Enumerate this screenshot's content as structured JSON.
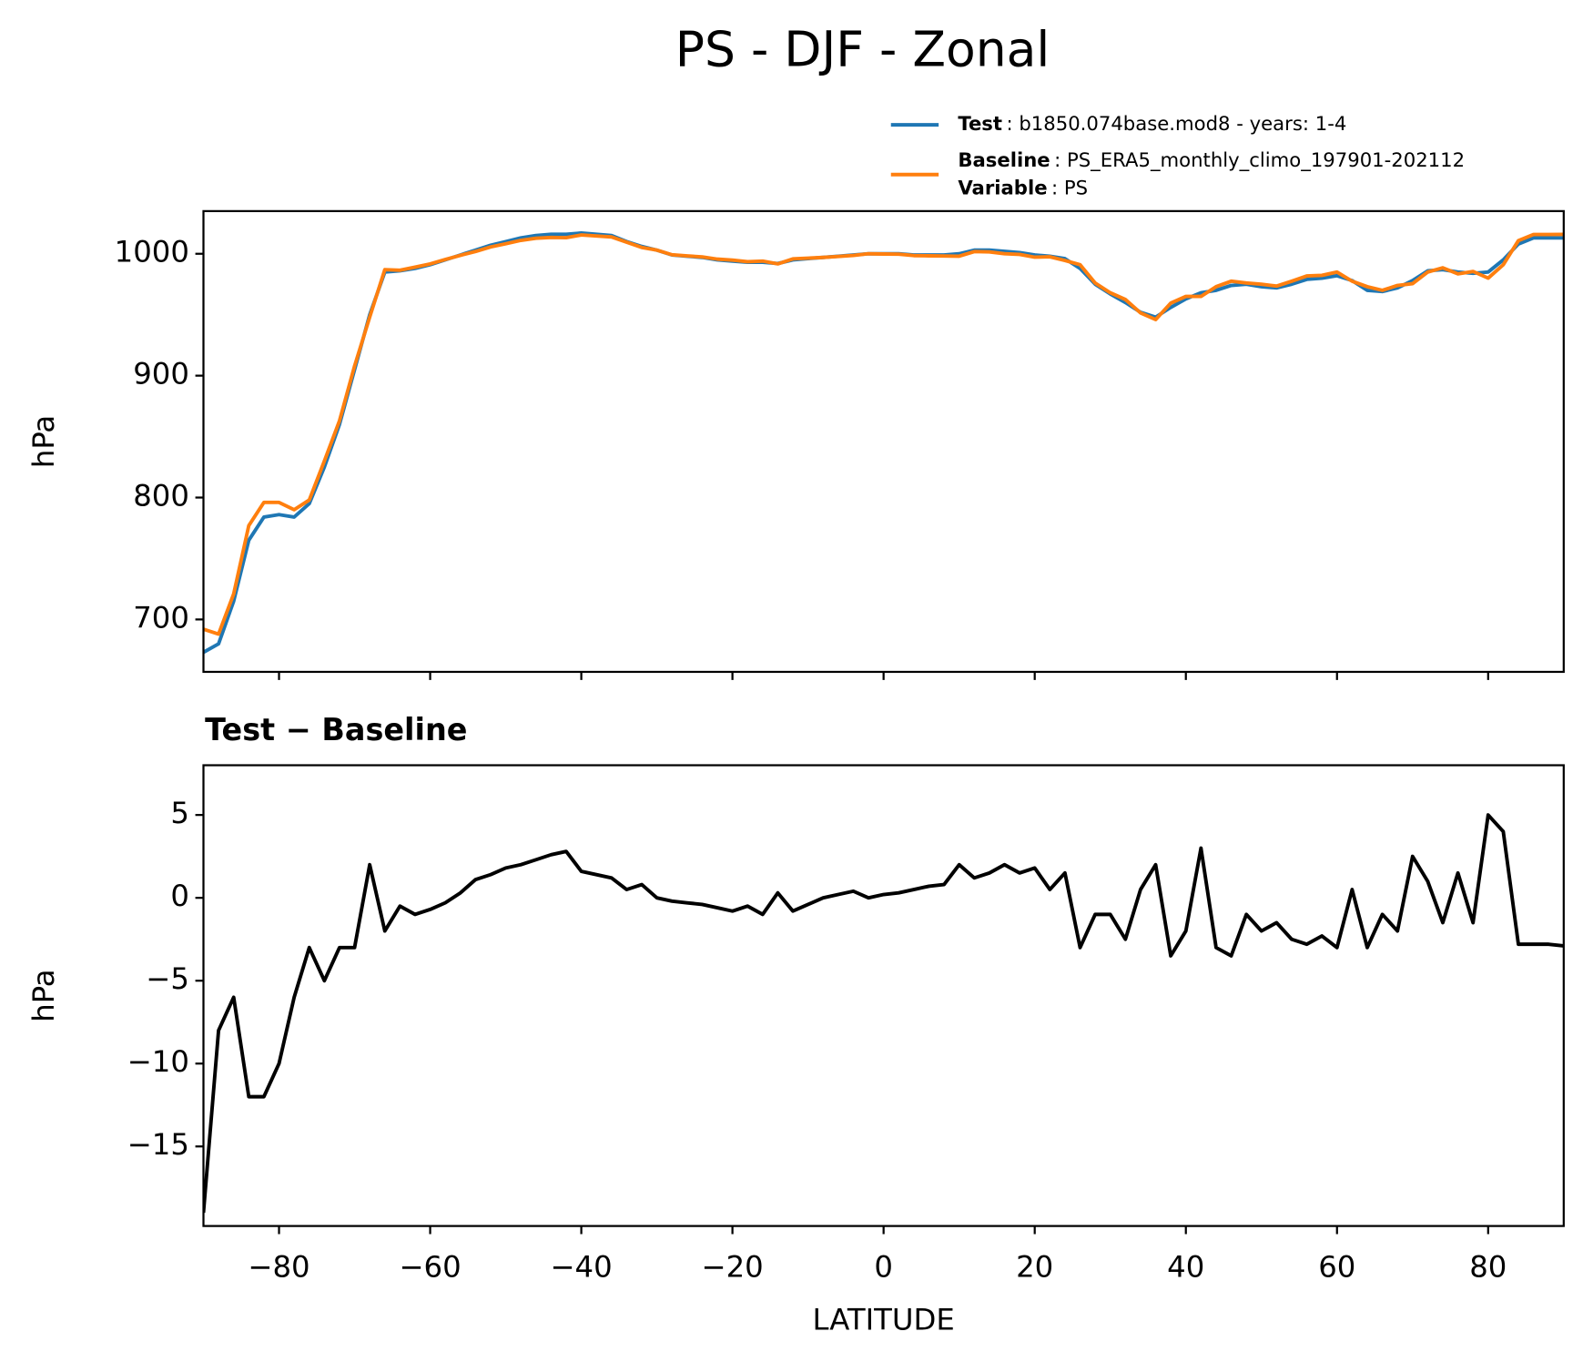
{
  "title": "PS - DJF - Zonal",
  "chart_data": [
    {
      "type": "line",
      "ylabel": "hPa",
      "xlim": [
        -90,
        90
      ],
      "ylim": [
        657,
        1035
      ],
      "xticks": [
        -80,
        -60,
        -40,
        -20,
        0,
        20,
        40,
        60,
        80
      ],
      "xtick_labels": false,
      "yticks": [
        700,
        800,
        900,
        1000
      ],
      "x": [
        -90,
        -88,
        -86,
        -84,
        -82,
        -80,
        -78,
        -76,
        -74,
        -72,
        -70,
        -68,
        -66,
        -64,
        -62,
        -60,
        -58,
        -56,
        -54,
        -52,
        -50,
        -48,
        -46,
        -44,
        -42,
        -40,
        -38,
        -36,
        -34,
        -32,
        -30,
        -28,
        -26,
        -24,
        -22,
        -20,
        -18,
        -16,
        -14,
        -12,
        -10,
        -8,
        -6,
        -4,
        -2,
        0,
        2,
        4,
        6,
        8,
        10,
        12,
        14,
        16,
        18,
        20,
        22,
        24,
        26,
        28,
        30,
        32,
        34,
        36,
        38,
        40,
        42,
        44,
        46,
        48,
        50,
        52,
        54,
        56,
        58,
        60,
        62,
        64,
        66,
        68,
        70,
        72,
        74,
        76,
        78,
        80,
        82,
        84,
        86,
        88,
        90
      ],
      "series": [
        {
          "name": "Test",
          "description": ": b1850.074base.mod8 - years: 1-4",
          "color": "#1f77b4",
          "values": [
            673,
            680,
            715,
            765,
            784,
            786,
            784,
            795,
            825,
            860,
            905,
            950,
            985,
            986,
            988,
            991,
            995,
            999,
            1003,
            1007,
            1010,
            1013,
            1015,
            1016,
            1016,
            1017,
            1016,
            1015,
            1010,
            1006,
            1003,
            999,
            998,
            997,
            995,
            994,
            993,
            993,
            992,
            995,
            996,
            997,
            998,
            999,
            1000,
            1000,
            1000,
            999,
            999,
            999,
            1000,
            1003,
            1003,
            1002,
            1001,
            999,
            998,
            996,
            988,
            975,
            967,
            960,
            952,
            948,
            956,
            963,
            968,
            970,
            974,
            975,
            973,
            972,
            975,
            979,
            980,
            982,
            978,
            970,
            969,
            972,
            978,
            986,
            987,
            985,
            984,
            985,
            995,
            1008,
            1013,
            1013,
            1013
          ]
        },
        {
          "name": "Baseline",
          "description": ": PS_ERA5_monthly_climo_197901-202112",
          "color": "#ff7f0e",
          "values": [
            692,
            688,
            721,
            777,
            796,
            796,
            790,
            798,
            830,
            863,
            908,
            948,
            987,
            986.5,
            989,
            991.7,
            995.3,
            998.7,
            1001.9,
            1005.6,
            1008.2,
            1011,
            1012.7,
            1013.4,
            1013.2,
            1015.4,
            1014.6,
            1013.8,
            1009.5,
            1005.2,
            1003,
            999.2,
            998.3,
            997.4,
            995.6,
            994.8,
            993.5,
            994,
            991.7,
            995.8,
            996.4,
            997,
            997.8,
            998.6,
            1000,
            999.8,
            999.7,
            998.5,
            998.3,
            998.2,
            998,
            1001.8,
            1001.5,
            1000,
            999.5,
            997.2,
            997.5,
            994.5,
            991,
            976,
            968,
            962.5,
            951.5,
            946,
            959.5,
            965,
            965,
            973,
            977.5,
            976,
            975,
            973.5,
            977.5,
            981.8,
            982.3,
            985,
            977.5,
            973,
            970,
            974,
            975.5,
            985,
            988.5,
            983.5,
            985.5,
            980,
            991,
            1010.8,
            1015.8,
            1015.8,
            1015.9
          ]
        }
      ],
      "variable": {
        "label": "Variable",
        "value": ": PS"
      }
    },
    {
      "type": "line",
      "title": "Test − Baseline",
      "xlabel": "LATITUDE",
      "ylabel": "hPa",
      "xlim": [
        -90,
        90
      ],
      "ylim": [
        -19.8,
        8
      ],
      "xticks": [
        {
          "value": -80,
          "label": "−80"
        },
        {
          "value": -60,
          "label": "−60"
        },
        {
          "value": -40,
          "label": "−40"
        },
        {
          "value": -20,
          "label": "−20"
        },
        0,
        20,
        40,
        60,
        80
      ],
      "yticks": [
        5,
        0,
        {
          "value": -5,
          "label": "−5"
        },
        {
          "value": -10,
          "label": "−10"
        },
        {
          "value": -15,
          "label": "−15"
        }
      ],
      "x": [
        -90,
        -88,
        -86,
        -84,
        -82,
        -80,
        -78,
        -76,
        -74,
        -72,
        -70,
        -68,
        -66,
        -64,
        -62,
        -60,
        -58,
        -56,
        -54,
        -52,
        -50,
        -48,
        -46,
        -44,
        -42,
        -40,
        -38,
        -36,
        -34,
        -32,
        -30,
        -28,
        -26,
        -24,
        -22,
        -20,
        -18,
        -16,
        -14,
        -12,
        -10,
        -8,
        -6,
        -4,
        -2,
        0,
        2,
        4,
        6,
        8,
        10,
        12,
        14,
        16,
        18,
        20,
        22,
        24,
        26,
        28,
        30,
        32,
        34,
        36,
        38,
        40,
        42,
        44,
        46,
        48,
        50,
        52,
        54,
        56,
        58,
        60,
        62,
        64,
        66,
        68,
        70,
        72,
        74,
        76,
        78,
        80,
        82,
        84,
        86,
        88,
        90
      ],
      "series": [
        {
          "color": "#000000",
          "values": [
            -19,
            -8,
            -6,
            -12,
            -12,
            -10,
            -6,
            -3,
            -5,
            -3,
            -3,
            2,
            -2,
            -0.5,
            -1,
            -0.7,
            -0.3,
            0.3,
            1.1,
            1.4,
            1.8,
            2,
            2.3,
            2.6,
            2.8,
            1.6,
            1.4,
            1.2,
            0.5,
            0.8,
            0,
            -0.2,
            -0.3,
            -0.4,
            -0.6,
            -0.8,
            -0.5,
            -1,
            0.3,
            -0.8,
            -0.4,
            0,
            0.2,
            0.4,
            0,
            0.2,
            0.3,
            0.5,
            0.7,
            0.8,
            2,
            1.2,
            1.5,
            2,
            1.5,
            1.8,
            0.5,
            1.5,
            -3,
            -1,
            -1,
            -2.5,
            0.5,
            2,
            -3.5,
            -2,
            3,
            -3,
            -3.5,
            -1,
            -2,
            -1.5,
            -2.5,
            -2.8,
            -2.3,
            -3,
            0.5,
            -3,
            -1,
            -2,
            2.5,
            1,
            -1.5,
            1.5,
            -1.5,
            5,
            4,
            -2.8,
            -2.8,
            -2.8,
            -2.9
          ]
        }
      ]
    }
  ]
}
